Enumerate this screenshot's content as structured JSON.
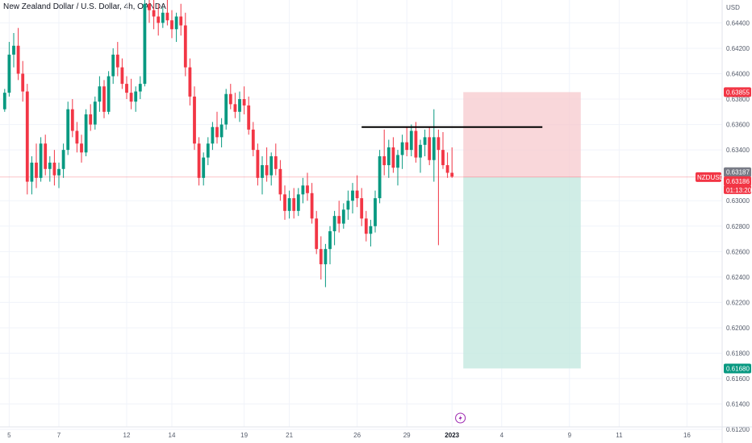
{
  "chart_data": {
    "type": "candlestick",
    "title": "New Zealand Dollar / U.S. Dollar, 4h, OANDA",
    "currency": "USD",
    "symbol": "NZDUSD",
    "countdown": "01:13:20",
    "colors": {
      "up": "#089981",
      "down": "#f23645",
      "trendline": "#000000",
      "stop_zone": "#f7c9cd",
      "target_zone": "#c4e8e0",
      "grid": "#f0f3fa",
      "axis_text": "#555c6b",
      "price_line": "#f23645",
      "last_bar_badge": "#787b86",
      "target_badge": "#089981",
      "stop_badge": "#f23645"
    },
    "y_axis": {
      "range": [
        0.6122,
        0.6458
      ],
      "tick_labels": [
        "0.64400",
        "0.64200",
        "0.64000",
        "0.63800",
        "0.63600",
        "0.63400",
        "0.63000",
        "0.62800",
        "0.62600",
        "0.62400",
        "0.62200",
        "0.62000",
        "0.61800",
        "0.61600",
        "0.61400",
        "0.61200"
      ]
    },
    "x_axis": {
      "tick_labels": [
        {
          "label": "5",
          "bar": 1
        },
        {
          "label": "7",
          "bar": 12
        },
        {
          "label": "12",
          "bar": 27
        },
        {
          "label": "14",
          "bar": 37
        },
        {
          "label": "19",
          "bar": 53
        },
        {
          "label": "21",
          "bar": 63
        },
        {
          "label": "26",
          "bar": 78
        },
        {
          "label": "29",
          "bar": 89
        },
        {
          "label": "2023",
          "bar": 99,
          "bold": true
        },
        {
          "label": "4",
          "bar": 110
        },
        {
          "label": "9",
          "bar": 125
        },
        {
          "label": "11",
          "bar": 136
        },
        {
          "label": "16",
          "bar": 151
        }
      ]
    },
    "price_badges": [
      {
        "label": "0.63855",
        "value": 0.63855,
        "kind": "stop"
      },
      {
        "label": "0.63187",
        "value": 0.63187,
        "kind": "last_bar"
      },
      {
        "label": "0.63186",
        "value": 0.63186,
        "kind": "price"
      },
      {
        "label": "0.61680",
        "value": 0.6168,
        "kind": "target"
      }
    ],
    "current_price": 0.63186,
    "trendline": {
      "bar_start": 79.5,
      "bar_end": 119.5,
      "value_start": 0.6358,
      "value_end": 0.6358
    },
    "position": {
      "bar_start": 102,
      "bar_end": 128,
      "entry": 0.63186,
      "stop": 0.63855,
      "target": 0.6168
    },
    "candles": [
      [
        0.6372,
        0.6388,
        0.637,
        0.6385
      ],
      [
        0.6385,
        0.6425,
        0.6382,
        0.6415
      ],
      [
        0.6415,
        0.6432,
        0.6405,
        0.6422
      ],
      [
        0.6422,
        0.6436,
        0.6395,
        0.64
      ],
      [
        0.64,
        0.641,
        0.6378,
        0.6386
      ],
      [
        0.6386,
        0.6392,
        0.6305,
        0.6315
      ],
      [
        0.6315,
        0.6335,
        0.6305,
        0.633
      ],
      [
        0.633,
        0.6345,
        0.631,
        0.6318
      ],
      [
        0.6318,
        0.635,
        0.6315,
        0.6345
      ],
      [
        0.6345,
        0.6352,
        0.632,
        0.6325
      ],
      [
        0.6325,
        0.6335,
        0.6315,
        0.633
      ],
      [
        0.633,
        0.634,
        0.6312,
        0.632
      ],
      [
        0.632,
        0.633,
        0.631,
        0.6325
      ],
      [
        0.6325,
        0.6345,
        0.6318,
        0.634
      ],
      [
        0.634,
        0.6378,
        0.6336,
        0.6372
      ],
      [
        0.6372,
        0.638,
        0.635,
        0.6355
      ],
      [
        0.6355,
        0.6362,
        0.6338,
        0.6345
      ],
      [
        0.6345,
        0.6352,
        0.633,
        0.6338
      ],
      [
        0.6338,
        0.6372,
        0.6335,
        0.6368
      ],
      [
        0.6368,
        0.6376,
        0.6355,
        0.636
      ],
      [
        0.636,
        0.6382,
        0.6356,
        0.6378
      ],
      [
        0.6378,
        0.6398,
        0.637,
        0.639
      ],
      [
        0.639,
        0.6395,
        0.6365,
        0.637
      ],
      [
        0.637,
        0.6402,
        0.6368,
        0.6398
      ],
      [
        0.6398,
        0.642,
        0.6392,
        0.6415
      ],
      [
        0.6415,
        0.6425,
        0.6398,
        0.6405
      ],
      [
        0.6405,
        0.6412,
        0.6388,
        0.6392
      ],
      [
        0.6392,
        0.6398,
        0.638,
        0.6385
      ],
      [
        0.6385,
        0.6396,
        0.6372,
        0.6378
      ],
      [
        0.6378,
        0.639,
        0.637,
        0.6386
      ],
      [
        0.6386,
        0.6398,
        0.638,
        0.6392
      ],
      [
        0.6392,
        0.646,
        0.639,
        0.6455
      ],
      [
        0.6455,
        0.6468,
        0.644,
        0.645
      ],
      [
        0.645,
        0.646,
        0.6435,
        0.6445
      ],
      [
        0.6445,
        0.6455,
        0.643,
        0.644
      ],
      [
        0.644,
        0.6452,
        0.6436,
        0.6448
      ],
      [
        0.6448,
        0.6462,
        0.6438,
        0.6442
      ],
      [
        0.6442,
        0.645,
        0.6428,
        0.6435
      ],
      [
        0.6435,
        0.6448,
        0.6425,
        0.6445
      ],
      [
        0.6445,
        0.6455,
        0.643,
        0.6438
      ],
      [
        0.6438,
        0.6448,
        0.6398,
        0.6405
      ],
      [
        0.6405,
        0.6412,
        0.6375,
        0.6382
      ],
      [
        0.6382,
        0.639,
        0.634,
        0.6345
      ],
      [
        0.6345,
        0.635,
        0.6312,
        0.6318
      ],
      [
        0.6318,
        0.6338,
        0.6312,
        0.6334
      ],
      [
        0.6334,
        0.635,
        0.6328,
        0.6345
      ],
      [
        0.6345,
        0.6362,
        0.634,
        0.6358
      ],
      [
        0.6358,
        0.637,
        0.6345,
        0.635
      ],
      [
        0.635,
        0.6365,
        0.6342,
        0.636
      ],
      [
        0.636,
        0.6388,
        0.6356,
        0.6384
      ],
      [
        0.6384,
        0.6392,
        0.6372,
        0.6376
      ],
      [
        0.6376,
        0.6385,
        0.6365,
        0.637
      ],
      [
        0.637,
        0.6386,
        0.6362,
        0.638
      ],
      [
        0.638,
        0.639,
        0.6368,
        0.6375
      ],
      [
        0.6375,
        0.6382,
        0.6352,
        0.6356
      ],
      [
        0.6356,
        0.6362,
        0.6335,
        0.634
      ],
      [
        0.634,
        0.6345,
        0.6312,
        0.6318
      ],
      [
        0.6318,
        0.6335,
        0.6305,
        0.6328
      ],
      [
        0.6328,
        0.6342,
        0.6315,
        0.632
      ],
      [
        0.632,
        0.6338,
        0.6312,
        0.6335
      ],
      [
        0.6335,
        0.6345,
        0.632,
        0.6325
      ],
      [
        0.6325,
        0.6332,
        0.63,
        0.6305
      ],
      [
        0.6305,
        0.6312,
        0.6285,
        0.6292
      ],
      [
        0.6292,
        0.6308,
        0.6286,
        0.6302
      ],
      [
        0.6302,
        0.631,
        0.6286,
        0.6292
      ],
      [
        0.6292,
        0.631,
        0.6288,
        0.6305
      ],
      [
        0.6305,
        0.6318,
        0.6298,
        0.6312
      ],
      [
        0.6312,
        0.6322,
        0.63,
        0.6306
      ],
      [
        0.6306,
        0.6314,
        0.6282,
        0.6286
      ],
      [
        0.6286,
        0.6292,
        0.6258,
        0.6262
      ],
      [
        0.6262,
        0.6272,
        0.6238,
        0.625
      ],
      [
        0.625,
        0.6266,
        0.6232,
        0.6262
      ],
      [
        0.6262,
        0.628,
        0.625,
        0.6276
      ],
      [
        0.6276,
        0.6292,
        0.6265,
        0.6288
      ],
      [
        0.6288,
        0.63,
        0.6275,
        0.6282
      ],
      [
        0.6282,
        0.6298,
        0.6278,
        0.6293
      ],
      [
        0.6293,
        0.6308,
        0.6285,
        0.63
      ],
      [
        0.63,
        0.6314,
        0.629,
        0.6308
      ],
      [
        0.6308,
        0.632,
        0.6295,
        0.6302
      ],
      [
        0.6302,
        0.631,
        0.628,
        0.6286
      ],
      [
        0.6286,
        0.6292,
        0.6268,
        0.6274
      ],
      [
        0.6274,
        0.6285,
        0.6264,
        0.628
      ],
      [
        0.628,
        0.6308,
        0.6275,
        0.6302
      ],
      [
        0.6302,
        0.634,
        0.6298,
        0.6335
      ],
      [
        0.6335,
        0.6356,
        0.632,
        0.6328
      ],
      [
        0.6328,
        0.6348,
        0.6318,
        0.6342
      ],
      [
        0.6342,
        0.635,
        0.6322,
        0.6326
      ],
      [
        0.6326,
        0.634,
        0.6312,
        0.6336
      ],
      [
        0.6336,
        0.6352,
        0.6325,
        0.6346
      ],
      [
        0.6346,
        0.6358,
        0.6335,
        0.634
      ],
      [
        0.634,
        0.636,
        0.6335,
        0.6355
      ],
      [
        0.6355,
        0.6362,
        0.633,
        0.6334
      ],
      [
        0.6334,
        0.6348,
        0.6322,
        0.6344
      ],
      [
        0.6344,
        0.6356,
        0.6335,
        0.635
      ],
      [
        0.635,
        0.6358,
        0.6328,
        0.6332
      ],
      [
        0.6332,
        0.6372,
        0.6315,
        0.635
      ],
      [
        0.635,
        0.6356,
        0.6265,
        0.634
      ],
      [
        0.634,
        0.6354,
        0.6325,
        0.6328
      ],
      [
        0.6328,
        0.6338,
        0.6318,
        0.6322
      ],
      [
        0.6322,
        0.6342,
        0.6318,
        0.6319
      ]
    ]
  }
}
